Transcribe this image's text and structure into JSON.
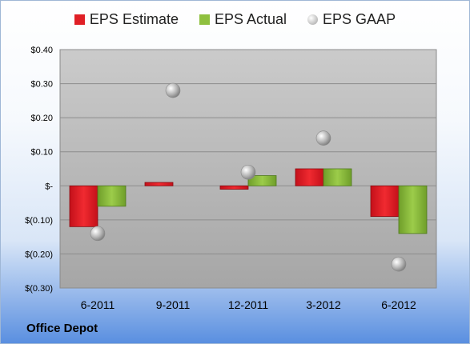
{
  "company": "Office Depot",
  "legend": {
    "estimate": "EPS Estimate",
    "actual": "EPS Actual",
    "gaap": "EPS GAAP"
  },
  "colors": {
    "estimate": "#e01f26",
    "actual": "#8fc03f",
    "gaap": "#b8b8b8",
    "plot_top": "#c8c8c8",
    "plot_bottom": "#9a9a9a"
  },
  "chart_data": {
    "type": "bar",
    "categories": [
      "6-2011",
      "9-2011",
      "12-2011",
      "3-2012",
      "6-2012"
    ],
    "series": [
      {
        "name": "EPS Estimate",
        "values": [
          -0.12,
          0.01,
          -0.01,
          0.05,
          -0.09
        ]
      },
      {
        "name": "EPS Actual",
        "values": [
          -0.06,
          null,
          0.03,
          0.05,
          -0.14
        ]
      },
      {
        "name": "EPS GAAP",
        "type": "scatter",
        "values": [
          -0.14,
          0.28,
          0.04,
          0.14,
          -0.23
        ]
      }
    ],
    "ylim": [
      -0.3,
      0.4
    ],
    "yticks": [
      0.4,
      0.3,
      0.2,
      0.1,
      0,
      -0.1,
      -0.2,
      -0.3
    ],
    "ytick_labels": [
      "$0.40",
      "$0.30",
      "$0.20",
      "$0.10",
      "$-",
      "$(0.10)",
      "$(0.20)",
      "$(0.30)"
    ],
    "grid": true,
    "legend_position": "top"
  }
}
